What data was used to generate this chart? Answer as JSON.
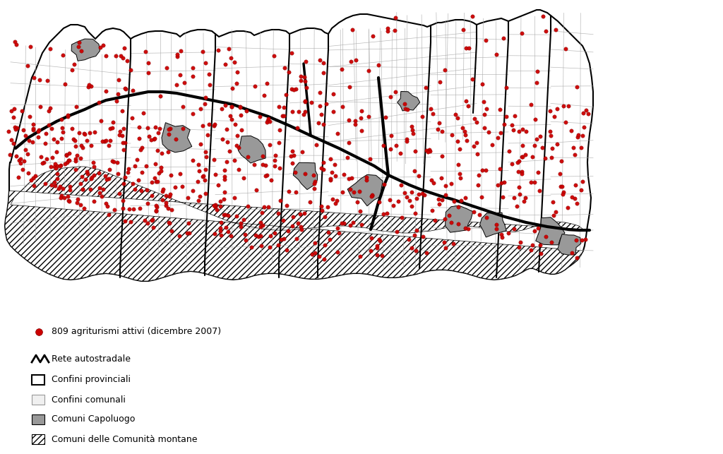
{
  "background_color": "#ffffff",
  "dot_color": "#cc0000",
  "highway_color": "#000000",
  "provincial_border_color": "#000000",
  "municipal_border_color": "#aaaaaa",
  "capoluogo_color": "#999999",
  "figsize": [
    10.24,
    6.43
  ],
  "dpi": 100,
  "legend_dot_label": "809 agriturismi attivi (dicembre 2007)",
  "legend_highway_label": "Rete autostradale",
  "legend_prov_label": "Confini provinciali",
  "legend_mun_label": "Confini comunali",
  "legend_cap_label": "Comuni Capoluogo",
  "legend_mont_label": "Comuni delle Comunità montane"
}
